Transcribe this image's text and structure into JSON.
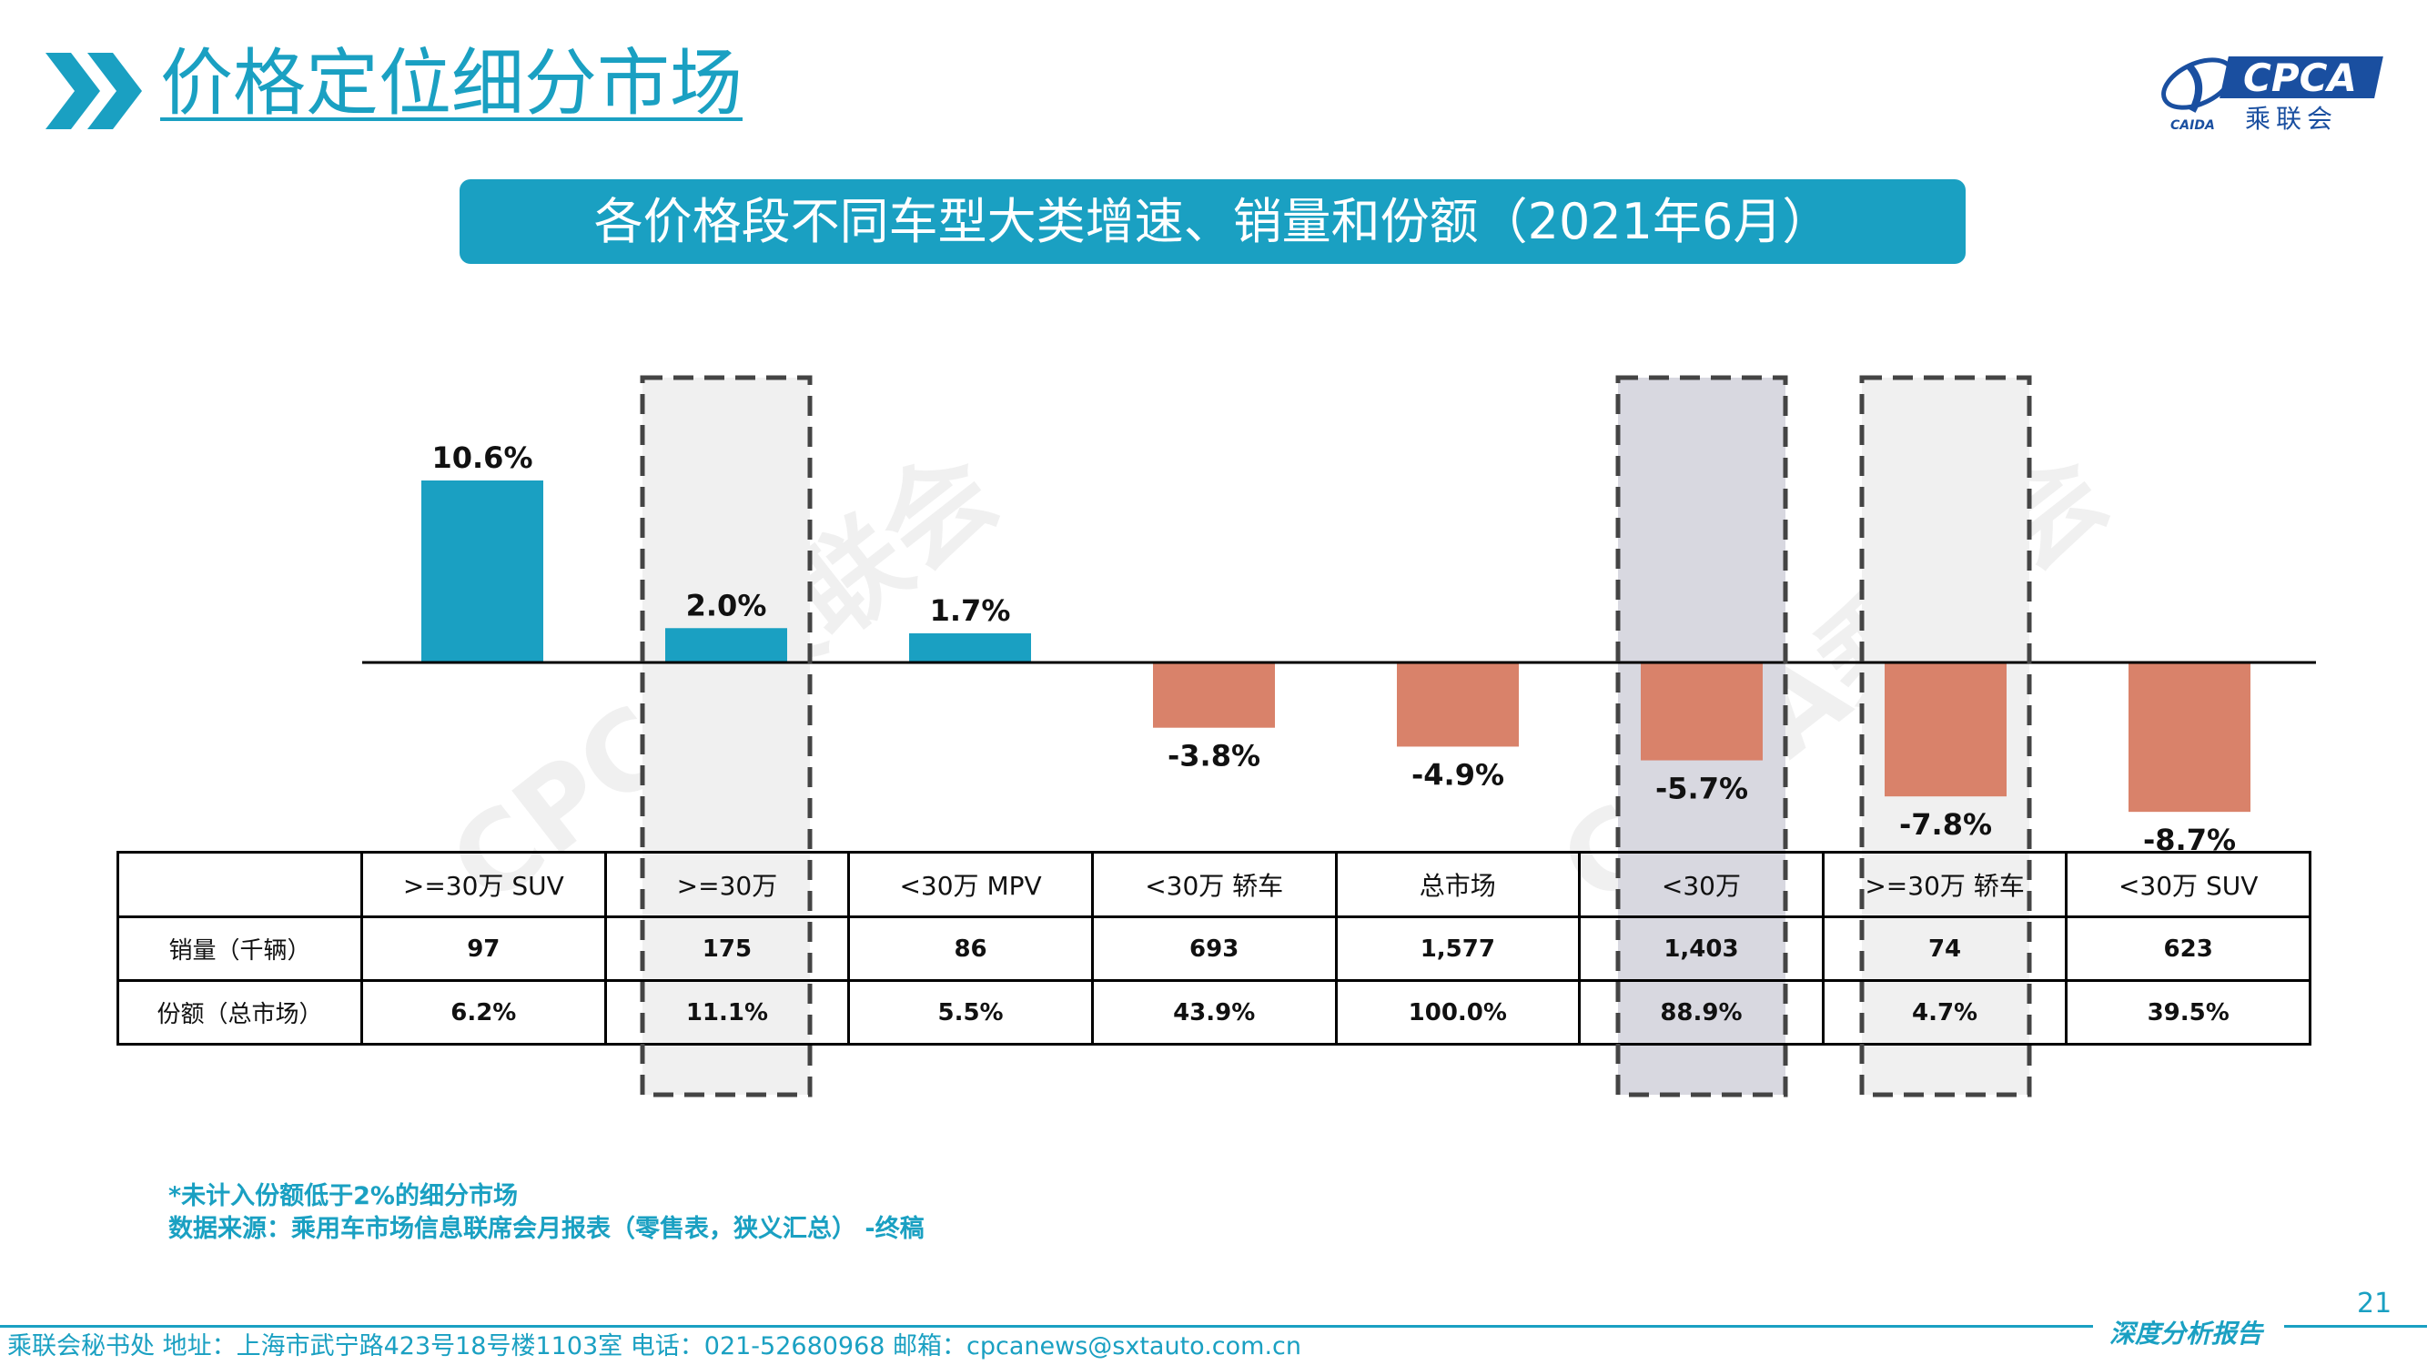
{
  "page": {
    "title": "价格定位细分市场",
    "banner": "各价格段不同车型大类增速、销量和份额（2021年6月）",
    "logo_text": "CPCA",
    "logo_subtext": "乘联会",
    "logo_small": "CAIDA",
    "watermark": "CPCA乘联会",
    "page_number": "21",
    "footnote_line1": "*未计入份额低于2%的细分市场",
    "footnote_line2": "数据来源：乘用车市场信息联席会月报表（零售表，狭义汇总） -终稿",
    "footer_contact": "乘联会秘书处   地址：上海市武宁路423号18号楼1103室  电话：021-52680968   邮箱：cpcanews@sxtauto.com.cn",
    "report_tag": "深度分析报告",
    "colors": {
      "accent": "#1aa0c2",
      "positive_bar": "#1aa0c2",
      "negative_bar": "#d9826a",
      "highlight_gray": "#d8d8e0",
      "highlight_light": "#f0f0f0",
      "dash_border": "#444444"
    }
  },
  "chart_data": {
    "type": "bar",
    "title": "各价格段不同车型大类增速、销量和份额（2021年6月）",
    "categories": [
      ">=30万 SUV",
      ">=30万",
      "<30万 MPV",
      "<30万 轿车",
      "总市场",
      "<30万",
      ">=30万 轿车",
      "<30万 SUV"
    ],
    "series": [
      {
        "values": [
          10.6,
          2.0,
          1.7,
          -3.8,
          -4.9,
          -5.7,
          -7.8,
          -8.7
        ]
      }
    ],
    "data_labels": [
      "10.6%",
      "2.0%",
      "1.7%",
      "-3.8%",
      "-4.9%",
      "-5.7%",
      "-7.8%",
      "-8.7%"
    ],
    "highlighted_categories": [
      ">=30万",
      "<30万",
      ">=30万 轿车"
    ],
    "ylim": [
      -10,
      12
    ],
    "grid": false,
    "legend": "none"
  },
  "table": {
    "row_labels": [
      "销量（千辆）",
      "份额（总市场）"
    ],
    "sales": [
      "97",
      "175",
      "86",
      "693",
      "1,577",
      "1,403",
      "74",
      "623"
    ],
    "share": [
      "6.2%",
      "11.1%",
      "5.5%",
      "43.9%",
      "100.0%",
      "88.9%",
      "4.7%",
      "39.5%"
    ]
  }
}
